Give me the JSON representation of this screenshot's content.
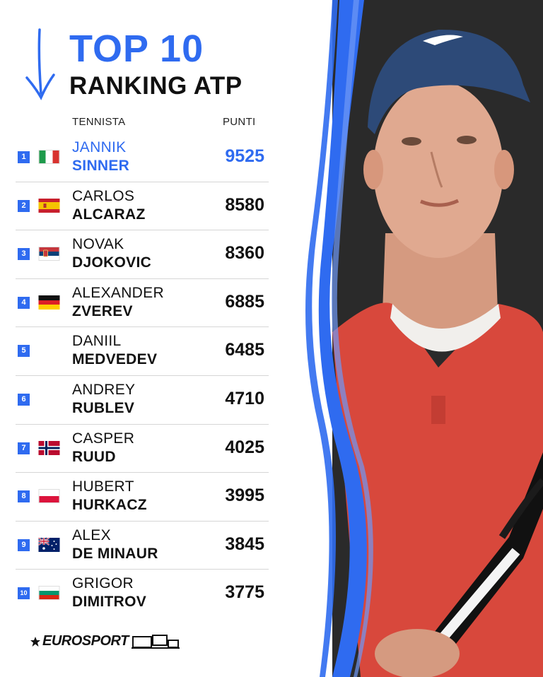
{
  "header": {
    "title_line1": "TOP 10",
    "title_line2": "RANKING ATP",
    "col_player": "TENNISTA",
    "col_points": "PUNTI"
  },
  "colors": {
    "accent": "#2f6bf0",
    "text": "#111111",
    "divider": "#d6d6d6"
  },
  "rows": [
    {
      "rank": "1",
      "first": "JANNIK",
      "last": "SINNER",
      "points": "9525",
      "flag": "italy-flag"
    },
    {
      "rank": "2",
      "first": "CARLOS",
      "last": "ALCARAZ",
      "points": "8580",
      "flag": "spain-flag"
    },
    {
      "rank": "3",
      "first": "NOVAK",
      "last": "DJOKOVIC",
      "points": "8360",
      "flag": "serbia-flag"
    },
    {
      "rank": "4",
      "first": "ALEXANDER",
      "last": "ZVEREV",
      "points": "6885",
      "flag": "germany-flag"
    },
    {
      "rank": "5",
      "first": "DANIIL",
      "last": "MEDVEDEV",
      "points": "6485",
      "flag": ""
    },
    {
      "rank": "6",
      "first": "ANDREY",
      "last": "RUBLEV",
      "points": "4710",
      "flag": ""
    },
    {
      "rank": "7",
      "first": "CASPER",
      "last": "RUUD",
      "points": "4025",
      "flag": "norway-flag"
    },
    {
      "rank": "8",
      "first": "HUBERT",
      "last": "HURKACZ",
      "points": "3995",
      "flag": "poland-flag"
    },
    {
      "rank": "9",
      "first": "ALEX",
      "last": "DE MINAUR",
      "points": "3845",
      "flag": "australia-flag"
    },
    {
      "rank": "10",
      "first": "GRIGOR",
      "last": "DIMITROV",
      "points": "3775",
      "flag": "bulgaria-flag"
    }
  ],
  "footer": {
    "brand": "EUROSPORT"
  }
}
